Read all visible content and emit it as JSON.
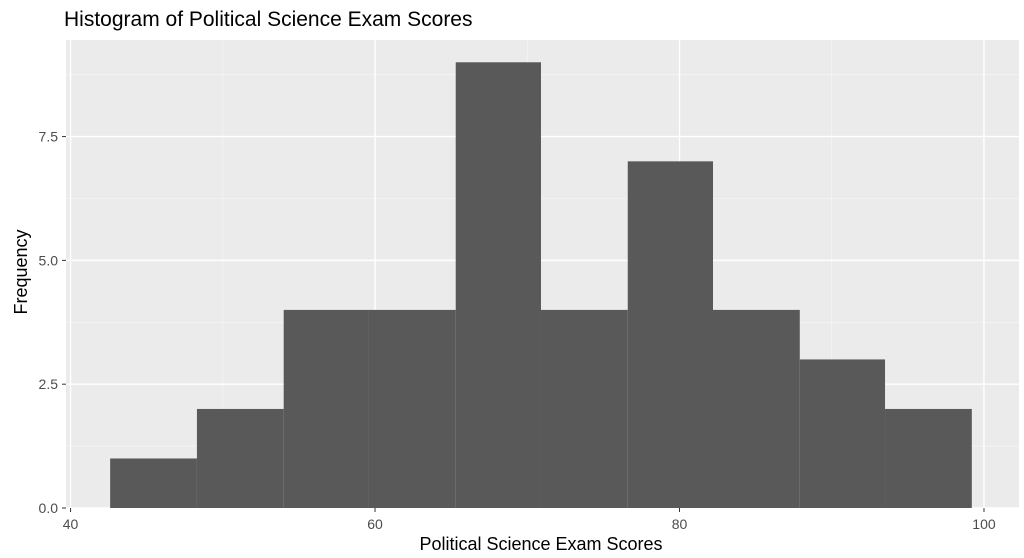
{
  "chart_data": {
    "type": "bar",
    "title": "Histogram of Political Science Exam Scores",
    "xlabel": "Political Science Exam Scores",
    "ylabel": "Frequency",
    "xlim": [
      39.7,
      102.3
    ],
    "ylim": [
      0,
      9.45
    ],
    "x_ticks": [
      {
        "value": 40,
        "label": "40"
      },
      {
        "value": 60,
        "label": "60"
      },
      {
        "value": 80,
        "label": "80"
      },
      {
        "value": 100,
        "label": "100"
      }
    ],
    "y_ticks": [
      {
        "value": 0,
        "label": "0.0"
      },
      {
        "value": 2.5,
        "label": "2.5"
      },
      {
        "value": 5,
        "label": "5.0"
      },
      {
        "value": 7.5,
        "label": "7.5"
      }
    ],
    "bins": [
      {
        "x_start": 42.6,
        "x_end": 48.3,
        "count": 1
      },
      {
        "x_start": 48.3,
        "x_end": 54.0,
        "count": 2
      },
      {
        "x_start": 54.0,
        "x_end": 59.6,
        "count": 4
      },
      {
        "x_start": 59.6,
        "x_end": 65.3,
        "count": 4
      },
      {
        "x_start": 65.3,
        "x_end": 70.9,
        "count": 9
      },
      {
        "x_start": 70.9,
        "x_end": 76.6,
        "count": 4
      },
      {
        "x_start": 76.6,
        "x_end": 82.2,
        "count": 7
      },
      {
        "x_start": 82.2,
        "x_end": 87.9,
        "count": 4
      },
      {
        "x_start": 87.9,
        "x_end": 93.5,
        "count": 3
      },
      {
        "x_start": 93.5,
        "x_end": 99.2,
        "count": 2
      }
    ],
    "grid": true,
    "legend": "none",
    "colors": {
      "panel_background": "#ebebeb",
      "grid_major": "#ffffff",
      "grid_minor": "#f5f5f5",
      "bar_fill": "#595959",
      "tick_color": "#333333"
    }
  }
}
